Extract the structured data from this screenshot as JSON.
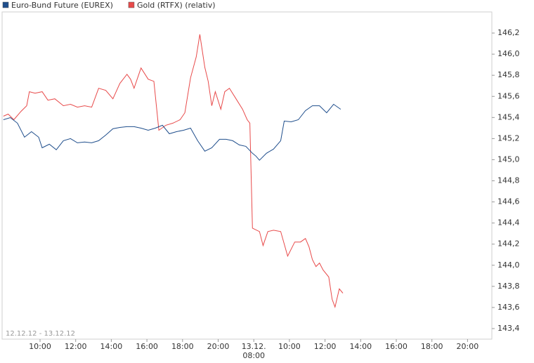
{
  "chart_data": {
    "type": "line",
    "date_range": "12.12.12 - 13.12.12",
    "series": [
      {
        "name": "Euro-Bund Future (EUREX)",
        "color": "#1f4e8c",
        "x": [
          7.94,
          8.33,
          8.73,
          9.13,
          9.52,
          9.92,
          10.12,
          10.52,
          10.91,
          11.31,
          11.71,
          12.1,
          12.5,
          12.9,
          13.29,
          13.69,
          14.09,
          14.48,
          14.88,
          15.28,
          15.67,
          16.07,
          16.47,
          16.87,
          17.26,
          17.66,
          18.06,
          18.45,
          18.85,
          19.25,
          19.64,
          20.44,
          22.67,
          24.89,
          27.11,
          29.33,
          31.56,
          32.12,
          32.32,
          32.71,
          33.11,
          33.51,
          33.71,
          34.1,
          34.5,
          34.9,
          35.29,
          35.69,
          36.09,
          36.48,
          36.88
        ],
        "values": [
          145.379,
          145.399,
          145.346,
          145.213,
          145.266,
          145.213,
          145.113,
          145.147,
          145.094,
          145.18,
          145.2,
          145.16,
          145.167,
          145.16,
          145.18,
          145.233,
          145.293,
          145.306,
          145.313,
          145.313,
          145.299,
          145.279,
          145.299,
          145.326,
          145.246,
          145.266,
          145.279,
          145.299,
          145.18,
          145.081,
          145.113,
          145.193,
          145.193,
          145.18,
          145.14,
          145.127,
          145.061,
          145.034,
          144.995,
          145.061,
          145.101,
          145.18,
          145.366,
          145.359,
          145.379,
          145.465,
          145.511,
          145.511,
          145.445,
          145.525,
          145.478
        ]
      },
      {
        "name": "Gold (RTFX) (relativ)",
        "color": "#e84a4a",
        "x": [
          7.94,
          8.21,
          8.53,
          8.93,
          9.25,
          9.4,
          9.72,
          10.12,
          10.44,
          10.83,
          11.31,
          11.71,
          12.1,
          12.5,
          12.9,
          13.29,
          13.69,
          14.09,
          14.48,
          14.88,
          15.08,
          15.28,
          15.67,
          16.07,
          16.39,
          16.67,
          17.06,
          17.46,
          17.86,
          18.13,
          18.45,
          18.77,
          18.97,
          19.25,
          19.44,
          19.64,
          19.84,
          20.89,
          22.22,
          23.78,
          26.0,
          28.22,
          29.78,
          30.67,
          31.56,
          32.32,
          32.52,
          32.79,
          33.11,
          33.51,
          33.9,
          34.3,
          34.62,
          34.9,
          35.1,
          35.29,
          35.49,
          35.69,
          35.89,
          36.21,
          36.4,
          36.56,
          36.8,
          37.0
        ],
        "values": [
          145.412,
          145.432,
          145.379,
          145.458,
          145.511,
          145.644,
          145.63,
          145.644,
          145.564,
          145.577,
          145.511,
          145.525,
          145.498,
          145.511,
          145.498,
          145.677,
          145.657,
          145.577,
          145.723,
          145.809,
          145.763,
          145.677,
          145.869,
          145.763,
          145.743,
          145.279,
          145.326,
          145.346,
          145.379,
          145.445,
          145.776,
          145.975,
          146.187,
          145.875,
          145.743,
          145.511,
          145.644,
          145.478,
          145.644,
          145.677,
          145.577,
          145.478,
          145.379,
          145.346,
          144.352,
          144.319,
          144.187,
          144.319,
          144.332,
          144.319,
          144.087,
          144.22,
          144.22,
          144.253,
          144.174,
          144.054,
          143.988,
          144.021,
          143.955,
          143.889,
          143.677,
          143.604,
          143.776,
          143.736
        ]
      }
    ],
    "xlim": [
      7.86,
      45.4
    ],
    "xticks": [
      {
        "value": 10,
        "label": "10:00"
      },
      {
        "value": 12,
        "label": "12:00"
      },
      {
        "value": 14,
        "label": "14:00"
      },
      {
        "value": 16,
        "label": "16:00"
      },
      {
        "value": 18,
        "label": "18:00"
      },
      {
        "value": 20,
        "label": "20:00"
      },
      {
        "value": 32,
        "label": "13.12.\n08:00"
      },
      {
        "value": 34,
        "label": "10:00"
      },
      {
        "value": 36,
        "label": "12:00"
      },
      {
        "value": 38,
        "label": "14:00"
      },
      {
        "value": 40,
        "label": "16:00"
      },
      {
        "value": 42,
        "label": "18:00"
      },
      {
        "value": 44,
        "label": "20:00"
      }
    ],
    "ylim": [
      143.3,
      146.4
    ],
    "yticks": [
      {
        "value": 143.4,
        "label": "143,4"
      },
      {
        "value": 143.6,
        "label": "143,6"
      },
      {
        "value": 143.8,
        "label": "143,8"
      },
      {
        "value": 144.0,
        "label": "144,0"
      },
      {
        "value": 144.2,
        "label": "144,2"
      },
      {
        "value": 144.4,
        "label": "144,4"
      },
      {
        "value": 144.6,
        "label": "144,6"
      },
      {
        "value": 144.8,
        "label": "144,8"
      },
      {
        "value": 145.0,
        "label": "145,0"
      },
      {
        "value": 145.2,
        "label": "145,2"
      },
      {
        "value": 145.4,
        "label": "145,4"
      },
      {
        "value": 145.6,
        "label": "145,6"
      },
      {
        "value": 145.8,
        "label": "145,8"
      },
      {
        "value": 146.0,
        "label": "146,0"
      },
      {
        "value": 146.2,
        "label": "146,2"
      }
    ]
  }
}
